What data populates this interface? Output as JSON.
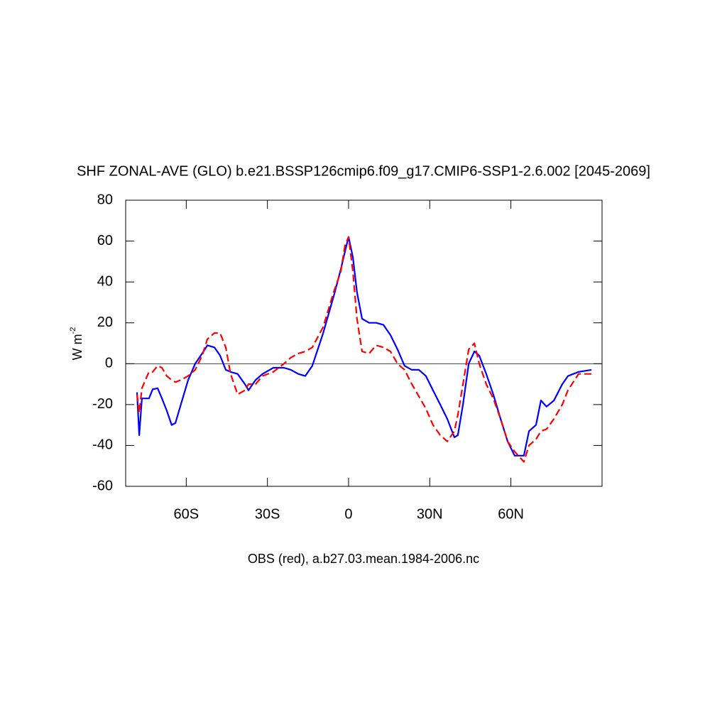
{
  "chart_data": {
    "type": "line",
    "title": "SHF ZONAL-AVE (GLO) b.e21.BSSP126cmip6.f09_g17.CMIP6-SSP1-2.6.002 [2045-2069]",
    "xlabel": "OBS (red), a.b27.03.mean.1984-2006.nc",
    "ylabel": "W m",
    "ylabel_sup": "-2",
    "xlim": [
      -82.4,
      93.7
    ],
    "ylim": [
      -60,
      80
    ],
    "xticks": [
      {
        "value": -60,
        "label": "60S"
      },
      {
        "value": -30,
        "label": "30S"
      },
      0,
      {
        "value": 30,
        "label": "30N"
      },
      {
        "value": 60,
        "label": "60N"
      }
    ],
    "yticks": [
      -60,
      -40,
      -20,
      0,
      20,
      40,
      60,
      80
    ],
    "reference_line": 0,
    "x": [
      -78.2,
      -77.4,
      -76.4,
      -73.8,
      -72.4,
      -70.6,
      -69,
      -67.2,
      -65.4,
      -64,
      -62,
      -59.3,
      -56.7,
      -54.1,
      -52.2,
      -49.6,
      -47.5,
      -45.4,
      -43.6,
      -41,
      -38.3,
      -37,
      -34.4,
      -31.8,
      -27.8,
      -23.9,
      -21.3,
      -18.6,
      -16,
      -13.4,
      -9.4,
      -5.5,
      -2.9,
      -1.3,
      0,
      1.6,
      3.1,
      5,
      7.6,
      10.2,
      12.9,
      15.5,
      18.1,
      20.7,
      23.4,
      26,
      28.6,
      31.2,
      33.9,
      36.5,
      39.1,
      40.4,
      42.3,
      44.4,
      46.5,
      48.3,
      50.9,
      53.5,
      56.2,
      58.8,
      61.4,
      64.8,
      66.7,
      69.3,
      71.1,
      73.2,
      75.9,
      79,
      81.1,
      85,
      89.8
    ],
    "series": [
      {
        "color": "#0000ff",
        "dash": false,
        "values": [
          -14,
          -35,
          -17,
          -17,
          -12.5,
          -12,
          -17,
          -23,
          -30,
          -29,
          -20,
          -8,
          0,
          5,
          9,
          8,
          4,
          -3,
          -4,
          -5,
          -10,
          -13,
          -8,
          -5,
          -2,
          -2,
          -3,
          -5,
          -6,
          -1,
          15,
          33,
          46,
          55,
          62,
          52,
          35,
          22,
          20,
          20,
          19,
          14,
          7,
          -1,
          -3,
          -3,
          -6,
          -13,
          -20,
          -27,
          -36,
          -35,
          -20,
          0,
          6,
          4,
          -5,
          -15,
          -27,
          -38,
          -45,
          -45,
          -33,
          -30,
          -18,
          -21,
          -18,
          -10,
          -6,
          -4,
          -3
        ]
      },
      {
        "color": "#ff0000",
        "dash": true,
        "values": [
          -15,
          -24,
          -12,
          -4,
          -4,
          -1,
          -2,
          -6,
          -8,
          -9,
          -8,
          -6,
          -3,
          4,
          12,
          15,
          15,
          8,
          -5,
          -15,
          -13,
          -10,
          -10,
          -6,
          -4,
          0,
          3,
          5,
          6,
          8,
          18,
          35,
          45,
          58,
          62,
          45,
          22,
          6,
          5,
          9,
          8,
          6,
          0,
          -3,
          -10,
          -16,
          -22,
          -30,
          -35,
          -38,
          -33,
          -25,
          -10,
          7,
          10,
          0,
          -10,
          -17,
          -27,
          -38,
          -43,
          -48,
          -40,
          -37,
          -33,
          -32,
          -27,
          -20,
          -13,
          -5,
          -5
        ]
      }
    ]
  }
}
